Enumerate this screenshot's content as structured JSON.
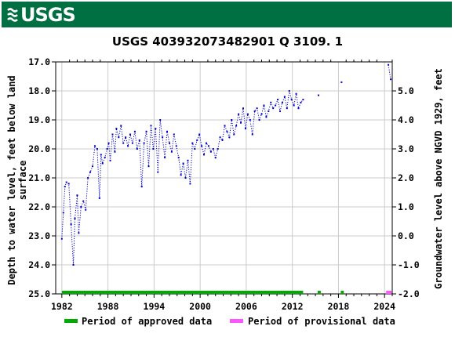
{
  "header": {
    "agency": "USGS"
  },
  "chart_data": {
    "type": "scatter",
    "title": "USGS 403932073482901 Q  3109. 1",
    "ylabel_left_lines": [
      "Depth to water level, feet below land",
      "surface"
    ],
    "ylabel_right": "Groundwater level above NGVD 1929, feet",
    "xlim": [
      1981.2,
      2025.0
    ],
    "ylim_left": [
      25.0,
      17.0
    ],
    "ylim_right": [
      -2.0,
      5.87
    ],
    "right_offset": 23.0,
    "x_ticks": [
      1982,
      1988,
      1994,
      2000,
      2006,
      2012,
      2018,
      2024
    ],
    "y_ticks_left": [
      "17.0",
      "18.0",
      "19.0",
      "20.0",
      "21.0",
      "22.0",
      "23.0",
      "24.0",
      "25.0"
    ],
    "y_ticks_right": [
      "5.0",
      "4.0",
      "3.0",
      "2.0",
      "1.0",
      "0.0",
      "-1.0",
      "-2.0"
    ],
    "grid": true,
    "series_color": "#0000cc",
    "series": [
      {
        "name": "",
        "x": [
          1982.0,
          1982.2,
          1982.4,
          1982.6,
          1982.9,
          1983.2,
          1983.5,
          1983.7,
          1984.0,
          1984.2,
          1984.5,
          1984.8,
          1985.1,
          1985.4,
          1985.7,
          1986.0,
          1986.3,
          1986.6,
          1986.9,
          1987.1,
          1987.3,
          1987.6,
          1987.9,
          1988.1,
          1988.3,
          1988.6,
          1988.9,
          1989.1,
          1989.4,
          1989.7,
          1990.0,
          1990.3,
          1990.6,
          1990.9,
          1991.2,
          1991.5,
          1991.8,
          1992.1,
          1992.4,
          1992.7,
          1993.0,
          1993.3,
          1993.6,
          1993.9,
          1994.2,
          1994.5,
          1994.8,
          1995.1,
          1995.4,
          1995.7,
          1996.0,
          1996.3,
          1996.6,
          1996.9,
          1997.2,
          1997.5,
          1997.8,
          1998.1,
          1998.4,
          1998.7,
          1999.0,
          1999.3,
          1999.6,
          1999.9,
          2000.2,
          2000.5,
          2000.8,
          2001.1,
          2001.4,
          2001.7,
          2002.0,
          2002.3,
          2002.6,
          2002.9,
          2003.2,
          2003.5,
          2003.8,
          2004.1,
          2004.4,
          2004.7,
          2005.0,
          2005.3,
          2005.6,
          2005.9,
          2006.2,
          2006.5,
          2006.8,
          2007.1,
          2007.4,
          2007.7,
          2008.0,
          2008.3,
          2008.6,
          2008.9,
          2009.2,
          2009.5,
          2009.8,
          2010.1,
          2010.4,
          2010.7,
          2011.0,
          2011.3,
          2011.6,
          2011.9,
          2012.2,
          2012.5,
          2012.8,
          2013.1,
          2013.4,
          2015.4,
          2018.4,
          2024.5,
          2024.8
        ],
        "y": [
          23.1,
          22.2,
          21.3,
          21.15,
          21.2,
          22.6,
          24.0,
          22.4,
          21.6,
          22.9,
          22.0,
          21.8,
          22.1,
          21.0,
          20.8,
          20.6,
          19.9,
          20.0,
          21.7,
          20.2,
          20.5,
          20.3,
          20.0,
          19.8,
          20.4,
          19.5,
          20.1,
          19.3,
          19.6,
          19.2,
          19.8,
          19.6,
          19.9,
          19.5,
          19.8,
          19.4,
          20.0,
          19.7,
          21.3,
          19.8,
          19.4,
          20.6,
          19.2,
          20.0,
          19.3,
          20.8,
          19.0,
          19.6,
          20.3,
          19.4,
          19.8,
          20.1,
          19.5,
          19.9,
          20.3,
          20.9,
          20.5,
          21.0,
          20.4,
          21.2,
          19.8,
          20.0,
          19.7,
          19.5,
          19.9,
          20.2,
          19.8,
          19.9,
          20.1,
          20.0,
          20.3,
          20.0,
          19.6,
          19.7,
          19.2,
          19.4,
          19.6,
          19.0,
          19.5,
          19.2,
          18.8,
          19.1,
          18.6,
          19.3,
          18.8,
          19.0,
          19.5,
          18.7,
          18.6,
          19.0,
          18.8,
          18.5,
          18.9,
          18.7,
          18.4,
          18.6,
          18.5,
          18.3,
          18.7,
          18.4,
          18.2,
          18.6,
          18.0,
          18.3,
          18.5,
          18.1,
          18.6,
          18.4,
          18.3,
          18.15,
          17.7,
          17.1,
          17.6
        ]
      }
    ],
    "approved_periods": [
      [
        1982.0,
        2013.4
      ],
      [
        2015.3,
        2015.7
      ],
      [
        2018.3,
        2018.7
      ]
    ],
    "provisional_periods": [
      [
        2024.2,
        2024.9
      ]
    ],
    "approved_color": "#00aa00",
    "provisional_color": "#ff55ff",
    "legend": [
      {
        "label": "Period of approved data",
        "color": "#00aa00"
      },
      {
        "label": "Period of provisional data",
        "color": "#ff55ff"
      }
    ]
  }
}
